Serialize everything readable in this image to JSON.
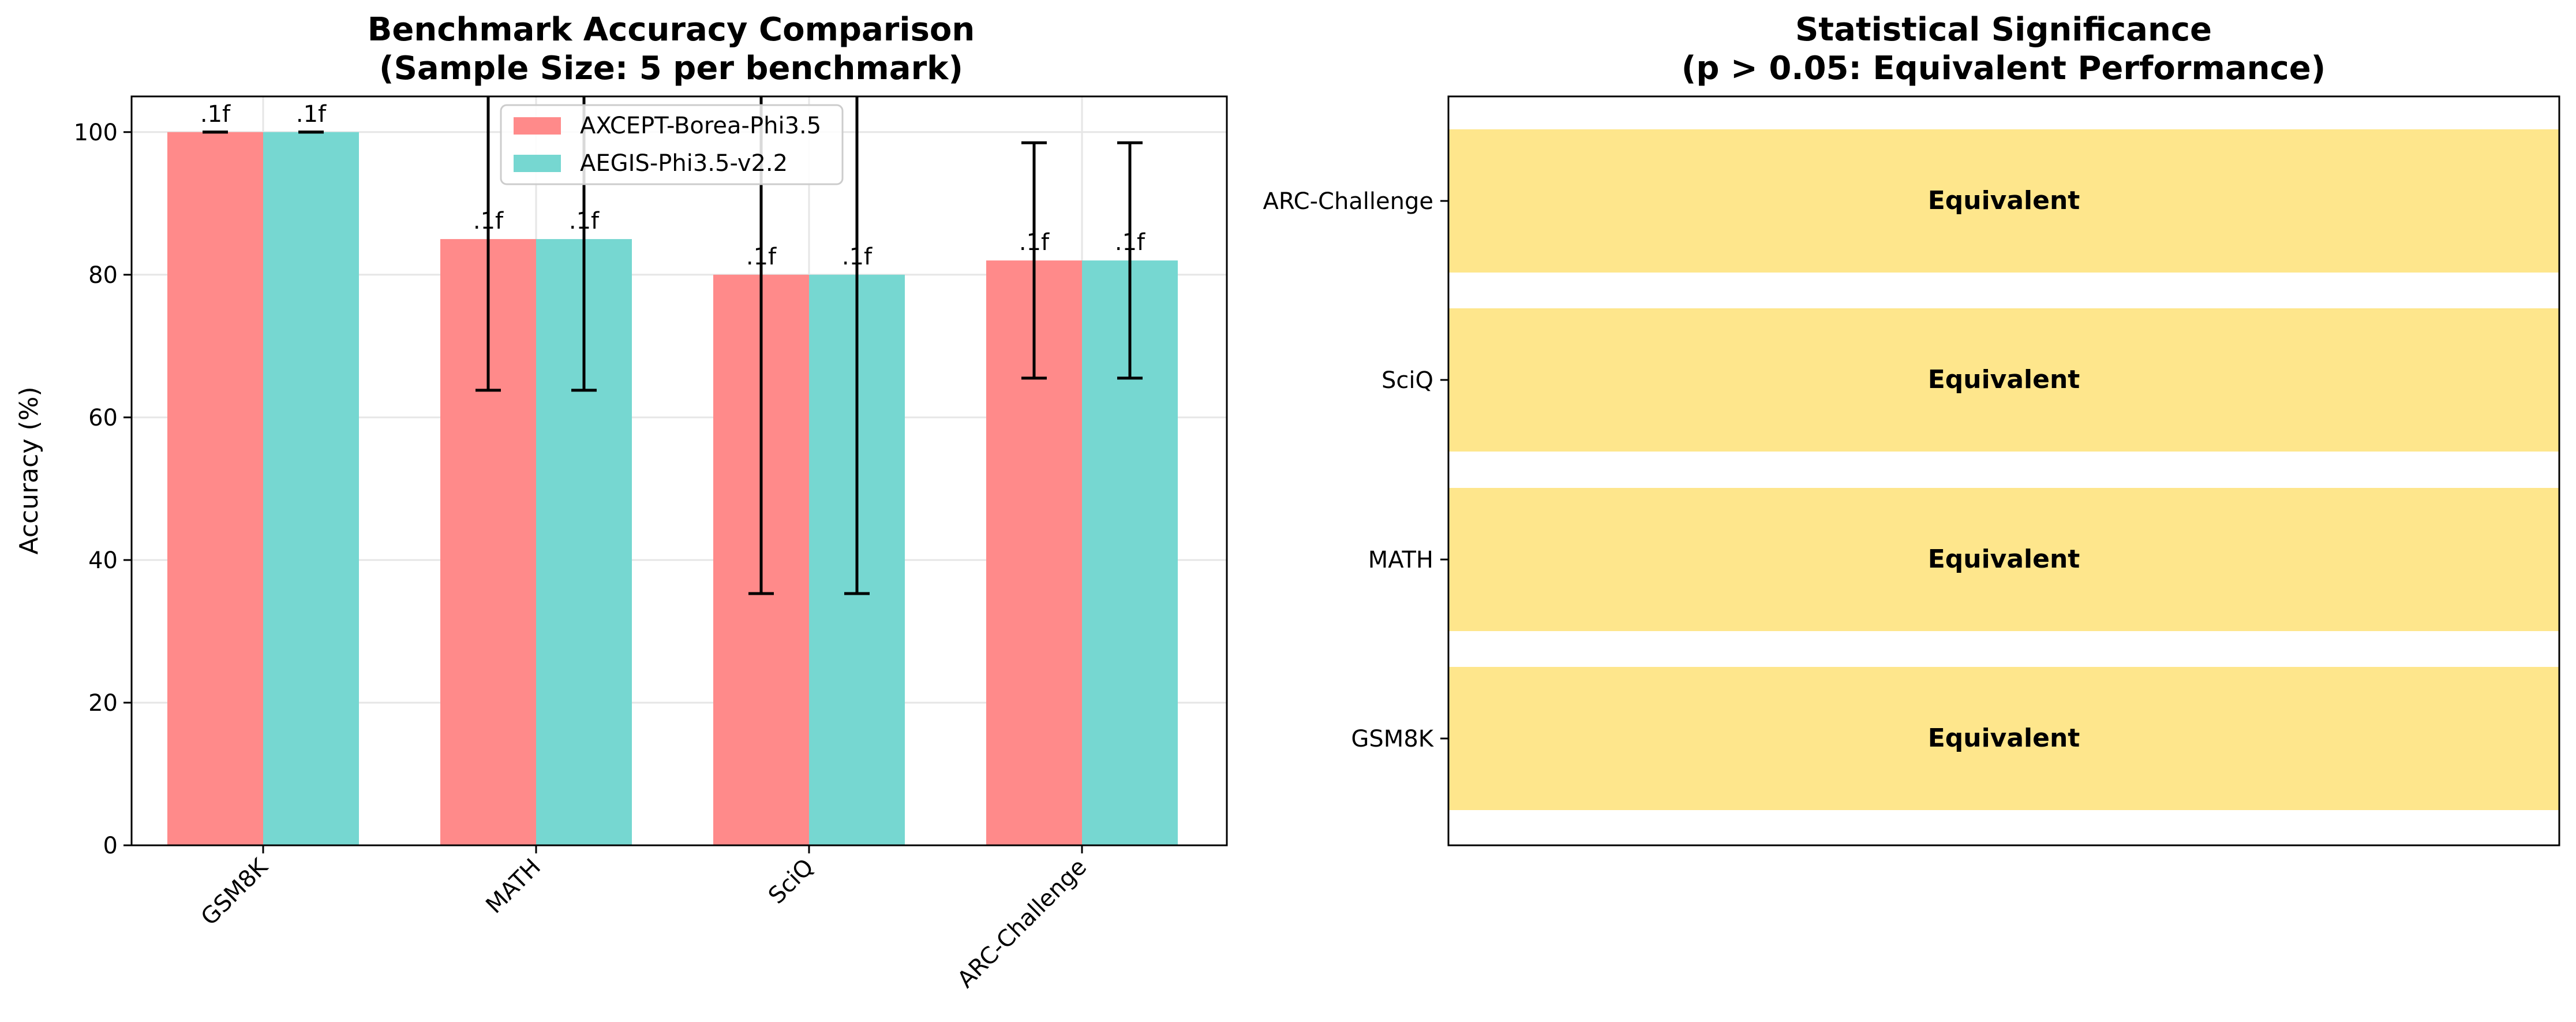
{
  "chart_data": [
    {
      "type": "bar",
      "title": "Benchmark Accuracy Comparison",
      "subtitle": "(Sample Size: 5 per benchmark)",
      "xlabel": "",
      "ylabel": "Accuracy (%)",
      "categories": [
        "GSM8K",
        "MATH",
        "SciQ",
        "ARC-Challenge"
      ],
      "series": [
        {
          "name": "AXCEPT-Borea-Phi3.5",
          "color": "#ff8a8a",
          "values": [
            100,
            85,
            80,
            82
          ],
          "error_low": [
            100,
            63.8,
            35.3,
            65.5
          ],
          "error_high": [
            100,
            106.2,
            124.7,
            98.5
          ],
          "data_labels": [
            ".1f",
            ".1f",
            ".1f",
            ".1f"
          ]
        },
        {
          "name": "AEGIS-Phi3.5-v2.2",
          "color": "#76d7d1",
          "values": [
            100,
            85,
            80,
            82
          ],
          "error_low": [
            100,
            63.8,
            35.3,
            65.5
          ],
          "error_high": [
            100,
            106.2,
            124.7,
            98.5
          ],
          "data_labels": [
            ".1f",
            ".1f",
            ".1f",
            ".1f"
          ]
        }
      ],
      "ylim": [
        0,
        105
      ],
      "yticks": [
        0,
        20,
        40,
        60,
        80,
        100
      ],
      "grid": true,
      "legend_position": "top-center"
    },
    {
      "type": "bar",
      "orientation": "horizontal",
      "title": "Statistical Significance",
      "subtitle": "(p > 0.05: Equivalent Performance)",
      "categories": [
        "GSM8K",
        "MATH",
        "SciQ",
        "ARC-Challenge"
      ],
      "values": [
        1,
        1,
        1,
        1
      ],
      "bar_labels": [
        "Equivalent",
        "Equivalent",
        "Equivalent",
        "Equivalent"
      ],
      "color": "#fee68c",
      "xlim": [
        0,
        1
      ],
      "x_axis_visible": false,
      "grid": false
    }
  ]
}
